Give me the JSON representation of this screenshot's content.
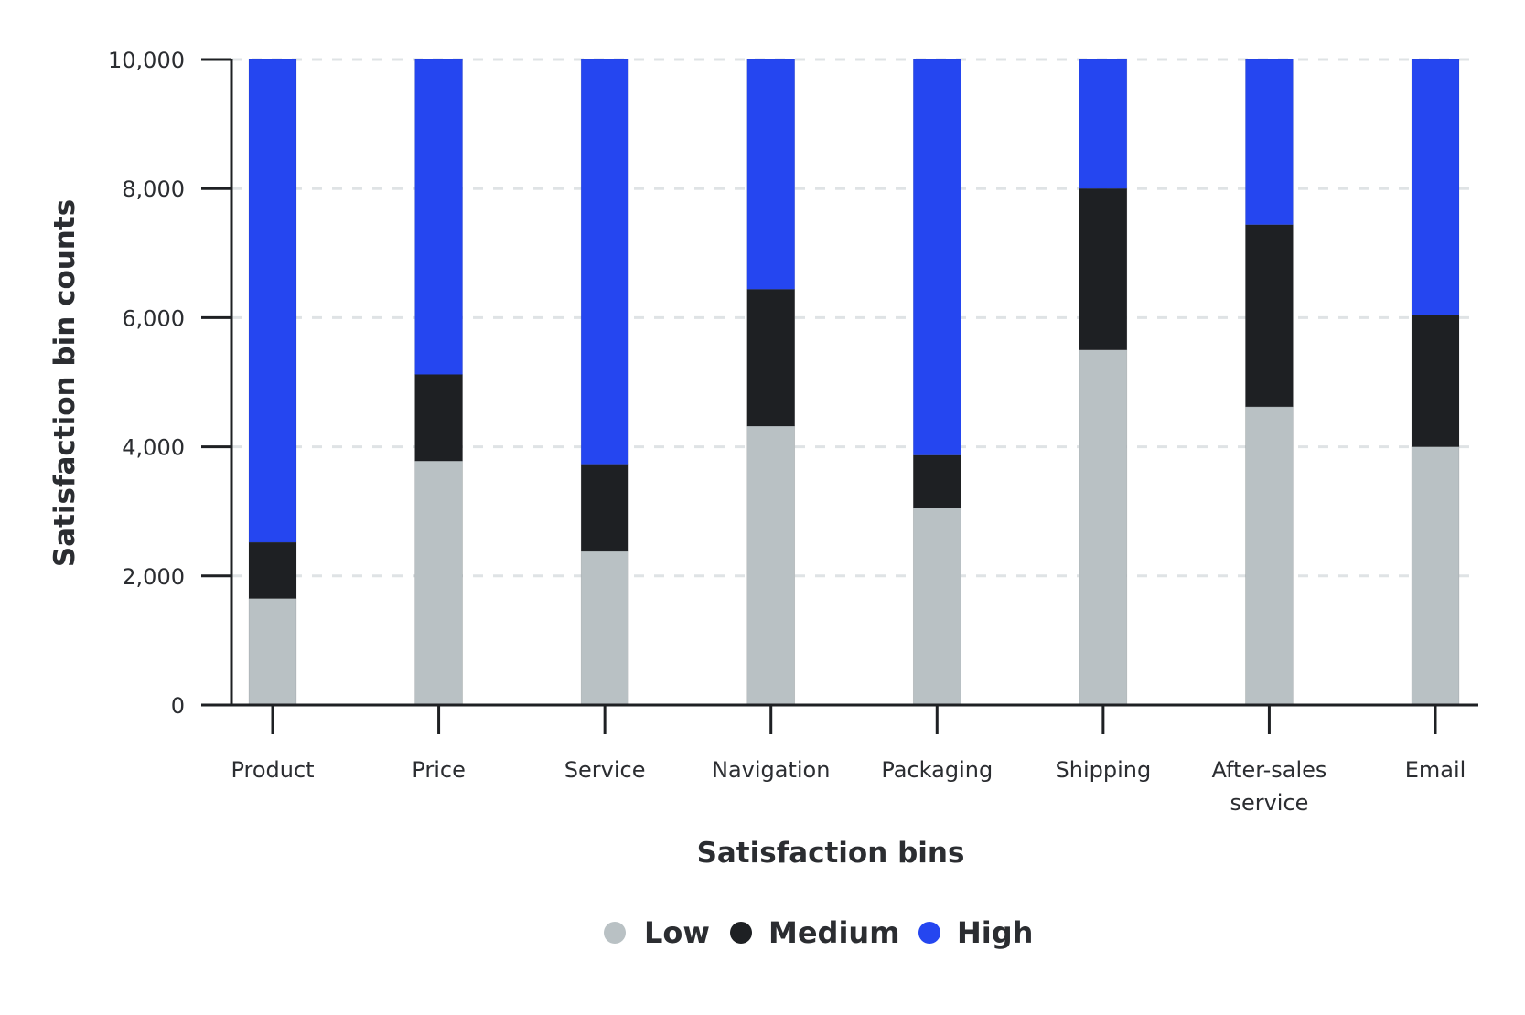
{
  "chart_data": {
    "type": "bar",
    "stacked": true,
    "title": "",
    "xlabel": "Satisfaction bins",
    "ylabel": "Satisfaction bin counts",
    "ylim": [
      0,
      10000
    ],
    "yticks": [
      0,
      2000,
      4000,
      6000,
      8000,
      10000
    ],
    "ytick_labels": [
      "0",
      "2,000",
      "4,000",
      "6,000",
      "8,000",
      "10,000"
    ],
    "grid": "horizontal dashed",
    "legend_position": "bottom-center",
    "categories": [
      [
        "Product"
      ],
      [
        "Price"
      ],
      [
        "Service"
      ],
      [
        "Navigation"
      ],
      [
        "Packaging"
      ],
      [
        "Shipping"
      ],
      [
        "After-sales",
        "service"
      ],
      [
        "Email"
      ]
    ],
    "series": [
      {
        "name": "Low",
        "color": "#b9c1c4",
        "values": [
          1650,
          3780,
          2380,
          4320,
          3050,
          5500,
          4620,
          4000
        ]
      },
      {
        "name": "Medium",
        "color": "#1e2023",
        "values": [
          870,
          1340,
          1350,
          2120,
          820,
          2500,
          2820,
          2040
        ]
      },
      {
        "name": "High",
        "color": "#2546f0",
        "values": [
          7480,
          4880,
          6270,
          3560,
          6130,
          2000,
          2560,
          3960
        ]
      }
    ]
  }
}
